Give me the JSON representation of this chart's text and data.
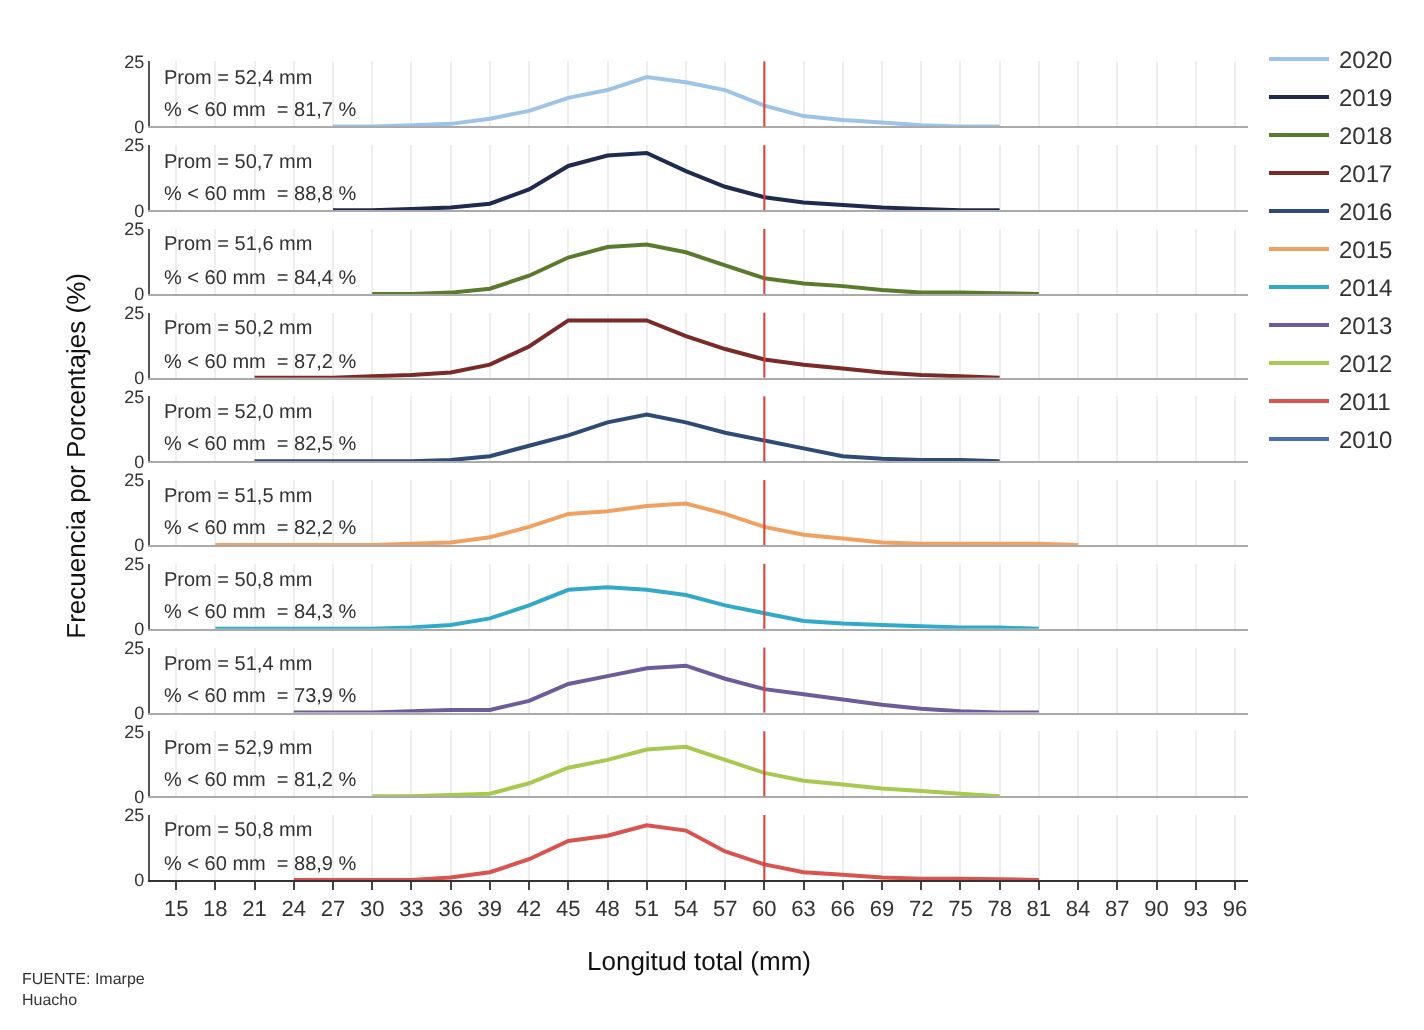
{
  "chart_data": [
    {
      "type": "line",
      "x": [
        27,
        30,
        33,
        36,
        39,
        42,
        45,
        48,
        51,
        54,
        57,
        60,
        63,
        66,
        69,
        72,
        75,
        78
      ],
      "series": [
        {
          "name": "2020",
          "color": "#9dc3e6",
          "values": [
            0,
            0,
            0.5,
            1,
            3,
            6,
            11,
            14,
            19,
            17,
            14,
            8,
            4,
            2.5,
            1.5,
            0.5,
            0,
            0
          ]
        }
      ],
      "ylim": [
        0,
        25
      ],
      "yticks": [
        0,
        25
      ],
      "xlim": [
        13,
        97
      ],
      "xticks": [
        15,
        18,
        21,
        24,
        27,
        30,
        33,
        36,
        39,
        42,
        45,
        48,
        51,
        54,
        57,
        60,
        63,
        66,
        69,
        72,
        75,
        78,
        81,
        84,
        87,
        90,
        93,
        96
      ],
      "tick_labels": "y",
      "grid": true,
      "legend": "right",
      "ylabel": "Frecuencia por Porcentajes (%)",
      "ref_lines": [
        {
          "axis": "x",
          "value": 60,
          "color": "#e03c3c"
        }
      ],
      "annotations": [
        "Prom = 52,4 mm",
        "% < 60 mm  = 81,7 %"
      ]
    },
    {
      "type": "line",
      "x": [
        27,
        30,
        33,
        36,
        39,
        42,
        45,
        48,
        51,
        54,
        57,
        60,
        63,
        66,
        69,
        72,
        75,
        78
      ],
      "series": [
        {
          "name": "2019",
          "color": "#1f2a4f",
          "values": [
            0,
            0,
            0.5,
            1,
            2.5,
            8,
            17,
            21,
            22,
            15,
            9,
            5,
            3,
            2,
            1,
            0.5,
            0,
            0
          ]
        }
      ],
      "ylim": [
        0,
        25
      ],
      "yticks": [
        0,
        25
      ],
      "xlim": [
        13,
        97
      ],
      "xticks": [
        15,
        18,
        21,
        24,
        27,
        30,
        33,
        36,
        39,
        42,
        45,
        48,
        51,
        54,
        57,
        60,
        63,
        66,
        69,
        72,
        75,
        78,
        81,
        84,
        87,
        90,
        93,
        96
      ],
      "tick_labels": "y",
      "grid": true,
      "legend": "right",
      "ref_lines": [
        {
          "axis": "x",
          "value": 60,
          "color": "#e03c3c"
        }
      ],
      "annotations": [
        "Prom = 50,7 mm",
        "% < 60 mm  = 88,8 %"
      ]
    },
    {
      "type": "line",
      "x": [
        30,
        33,
        36,
        39,
        42,
        45,
        48,
        51,
        54,
        57,
        60,
        63,
        66,
        69,
        72,
        75,
        78,
        81
      ],
      "series": [
        {
          "name": "2018",
          "color": "#5a7a2e",
          "values": [
            0,
            0,
            0.5,
            2,
            7,
            14,
            18,
            19,
            16,
            11,
            6,
            4,
            3,
            1.5,
            0.5,
            0.5,
            0.3,
            0
          ]
        }
      ],
      "ylim": [
        0,
        25
      ],
      "yticks": [
        0,
        25
      ],
      "xlim": [
        13,
        97
      ],
      "xticks": [
        15,
        18,
        21,
        24,
        27,
        30,
        33,
        36,
        39,
        42,
        45,
        48,
        51,
        54,
        57,
        60,
        63,
        66,
        69,
        72,
        75,
        78,
        81,
        84,
        87,
        90,
        93,
        96
      ],
      "tick_labels": "y",
      "grid": true,
      "legend": "right",
      "ref_lines": [
        {
          "axis": "x",
          "value": 60,
          "color": "#e03c3c"
        }
      ],
      "annotations": [
        "Prom = 51,6 mm",
        "% < 60 mm  = 84,4 %"
      ]
    },
    {
      "type": "line",
      "x": [
        21,
        24,
        27,
        30,
        33,
        36,
        39,
        42,
        45,
        48,
        51,
        54,
        57,
        60,
        63,
        66,
        69,
        72,
        75,
        78
      ],
      "series": [
        {
          "name": "2017",
          "color": "#7b2a2a",
          "values": [
            0,
            0,
            0,
            0.5,
            1,
            2,
            5,
            12,
            22,
            22,
            22,
            16,
            11,
            7,
            5,
            3.5,
            2,
            1,
            0.5,
            0
          ]
        }
      ],
      "ylim": [
        0,
        25
      ],
      "yticks": [
        0,
        25
      ],
      "xlim": [
        13,
        97
      ],
      "xticks": [
        15,
        18,
        21,
        24,
        27,
        30,
        33,
        36,
        39,
        42,
        45,
        48,
        51,
        54,
        57,
        60,
        63,
        66,
        69,
        72,
        75,
        78,
        81,
        84,
        87,
        90,
        93,
        96
      ],
      "tick_labels": "y",
      "grid": true,
      "legend": "right",
      "ref_lines": [
        {
          "axis": "x",
          "value": 60,
          "color": "#e03c3c"
        }
      ],
      "annotations": [
        "Prom = 50,2 mm",
        "% < 60 mm  = 87,2 %"
      ]
    },
    {
      "type": "line",
      "x": [
        21,
        24,
        27,
        30,
        33,
        36,
        39,
        42,
        45,
        48,
        51,
        54,
        57,
        60,
        63,
        66,
        69,
        72,
        75,
        78
      ],
      "series": [
        {
          "name": "2016",
          "color": "#2f4a75",
          "values": [
            0,
            0,
            0,
            0,
            0,
            0.5,
            2,
            6,
            10,
            15,
            18,
            15,
            11,
            8,
            5,
            2,
            1,
            0.5,
            0.5,
            0
          ]
        }
      ],
      "ylim": [
        0,
        25
      ],
      "yticks": [
        0,
        25
      ],
      "xlim": [
        13,
        97
      ],
      "xticks": [
        15,
        18,
        21,
        24,
        27,
        30,
        33,
        36,
        39,
        42,
        45,
        48,
        51,
        54,
        57,
        60,
        63,
        66,
        69,
        72,
        75,
        78,
        81,
        84,
        87,
        90,
        93,
        96
      ],
      "tick_labels": "y",
      "grid": true,
      "legend": "right",
      "ref_lines": [
        {
          "axis": "x",
          "value": 60,
          "color": "#e03c3c"
        }
      ],
      "annotations": [
        "Prom = 52,0 mm",
        "% < 60 mm  = 82,5 %"
      ]
    },
    {
      "type": "line",
      "x": [
        18,
        21,
        24,
        27,
        30,
        33,
        36,
        39,
        42,
        45,
        48,
        51,
        54,
        57,
        60,
        63,
        66,
        69,
        72,
        75,
        78,
        81,
        84
      ],
      "series": [
        {
          "name": "2015",
          "color": "#f0a060",
          "values": [
            0,
            0,
            0,
            0,
            0,
            0.5,
            1,
            3,
            7,
            12,
            13,
            15,
            16,
            12,
            7,
            4,
            2.5,
            1,
            0.5,
            0.5,
            0.5,
            0.5,
            0
          ]
        }
      ],
      "ylim": [
        0,
        25
      ],
      "yticks": [
        0,
        25
      ],
      "xlim": [
        13,
        97
      ],
      "xticks": [
        15,
        18,
        21,
        24,
        27,
        30,
        33,
        36,
        39,
        42,
        45,
        48,
        51,
        54,
        57,
        60,
        63,
        66,
        69,
        72,
        75,
        78,
        81,
        84,
        87,
        90,
        93,
        96
      ],
      "tick_labels": "y",
      "grid": true,
      "legend": "right",
      "ref_lines": [
        {
          "axis": "x",
          "value": 60,
          "color": "#e03c3c"
        }
      ],
      "annotations": [
        "Prom = 51,5 mm",
        "% < 60 mm  = 82,2 %"
      ]
    },
    {
      "type": "line",
      "x": [
        18,
        21,
        24,
        27,
        30,
        33,
        36,
        39,
        42,
        45,
        48,
        51,
        54,
        57,
        60,
        63,
        66,
        69,
        72,
        75,
        78,
        81
      ],
      "series": [
        {
          "name": "2014",
          "color": "#33a9c9",
          "values": [
            0,
            0,
            0,
            0,
            0,
            0.5,
            1.5,
            4,
            9,
            15,
            16,
            15,
            13,
            9,
            6,
            3,
            2,
            1.5,
            1,
            0.5,
            0.5,
            0
          ]
        }
      ],
      "ylim": [
        0,
        25
      ],
      "yticks": [
        0,
        25
      ],
      "xlim": [
        13,
        97
      ],
      "xticks": [
        15,
        18,
        21,
        24,
        27,
        30,
        33,
        36,
        39,
        42,
        45,
        48,
        51,
        54,
        57,
        60,
        63,
        66,
        69,
        72,
        75,
        78,
        81,
        84,
        87,
        90,
        93,
        96
      ],
      "tick_labels": "y",
      "grid": true,
      "legend": "right",
      "ref_lines": [
        {
          "axis": "x",
          "value": 60,
          "color": "#e03c3c"
        }
      ],
      "annotations": [
        "Prom = 50,8 mm",
        "% < 60 mm  = 84,3 %"
      ]
    },
    {
      "type": "line",
      "x": [
        24,
        27,
        30,
        33,
        36,
        39,
        42,
        45,
        48,
        51,
        54,
        57,
        60,
        63,
        66,
        69,
        72,
        75,
        78,
        81
      ],
      "series": [
        {
          "name": "2013",
          "color": "#6e5b9a",
          "values": [
            0,
            0,
            0,
            0.5,
            1,
            1,
            4.5,
            11,
            14,
            17,
            18,
            13,
            9,
            7,
            5,
            3,
            1.5,
            0.5,
            0,
            0
          ]
        }
      ],
      "ylim": [
        0,
        25
      ],
      "yticks": [
        0,
        25
      ],
      "xlim": [
        13,
        97
      ],
      "xticks": [
        15,
        18,
        21,
        24,
        27,
        30,
        33,
        36,
        39,
        42,
        45,
        48,
        51,
        54,
        57,
        60,
        63,
        66,
        69,
        72,
        75,
        78,
        81,
        84,
        87,
        90,
        93,
        96
      ],
      "tick_labels": "y",
      "grid": true,
      "legend": "right",
      "ref_lines": [
        {
          "axis": "x",
          "value": 60,
          "color": "#e03c3c"
        }
      ],
      "annotations": [
        "Prom = 51,4 mm",
        "% < 60 mm  = 73,9 %"
      ]
    },
    {
      "type": "line",
      "x": [
        30,
        33,
        36,
        39,
        42,
        45,
        48,
        51,
        54,
        57,
        60,
        63,
        66,
        69,
        72,
        75,
        78
      ],
      "series": [
        {
          "name": "2012",
          "color": "#a8c850",
          "values": [
            0,
            0,
            0.5,
            1,
            5,
            11,
            14,
            18,
            19,
            14,
            9,
            6,
            4.5,
            3,
            2,
            1,
            0
          ]
        }
      ],
      "ylim": [
        0,
        25
      ],
      "yticks": [
        0,
        25
      ],
      "xlim": [
        13,
        97
      ],
      "xticks": [
        15,
        18,
        21,
        24,
        27,
        30,
        33,
        36,
        39,
        42,
        45,
        48,
        51,
        54,
        57,
        60,
        63,
        66,
        69,
        72,
        75,
        78,
        81,
        84,
        87,
        90,
        93,
        96
      ],
      "tick_labels": "y",
      "grid": true,
      "legend": "right",
      "ref_lines": [
        {
          "axis": "x",
          "value": 60,
          "color": "#e03c3c"
        }
      ],
      "annotations": [
        "Prom = 52,9 mm",
        "% < 60 mm  = 81,2 %"
      ]
    },
    {
      "type": "line",
      "x": [
        24,
        27,
        30,
        33,
        36,
        39,
        42,
        45,
        48,
        51,
        54,
        57,
        60,
        63,
        66,
        69,
        72,
        75,
        78,
        81
      ],
      "series": [
        {
          "name": "2011",
          "color": "#d9534f",
          "values": [
            0,
            0,
            0,
            0,
            1,
            3,
            8,
            15,
            17,
            21,
            19,
            11,
            6,
            3,
            2,
            1,
            0.5,
            0.5,
            0.3,
            0
          ]
        },
        {
          "name": "2010",
          "color": "#4a6fb5",
          "values": [
            null,
            null,
            null,
            null,
            null,
            null,
            null,
            null,
            null,
            null,
            null,
            null,
            null,
            null,
            null,
            null,
            null,
            null,
            null,
            null
          ]
        }
      ],
      "ylim": [
        0,
        25
      ],
      "yticks": [
        0,
        25
      ],
      "xlim": [
        13,
        97
      ],
      "xticks": [
        15,
        18,
        21,
        24,
        27,
        30,
        33,
        36,
        39,
        42,
        45,
        48,
        51,
        54,
        57,
        60,
        63,
        66,
        69,
        72,
        75,
        78,
        81,
        84,
        87,
        90,
        93,
        96
      ],
      "grid": true,
      "legend": "right",
      "xlabel": "Longitud total (mm)",
      "ref_lines": [
        {
          "axis": "x",
          "value": 60,
          "color": "#e03c3c"
        }
      ],
      "annotations": [
        "Prom = 50,8 mm",
        "% < 60 mm  = 88,9 %",
        "FUENTE: Imarpe\nHuacho"
      ]
    }
  ]
}
